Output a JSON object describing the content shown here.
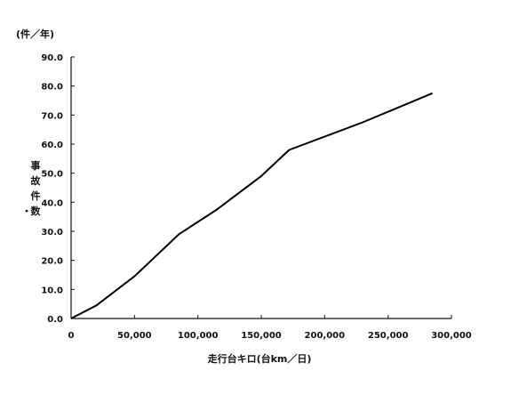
{
  "chart_data": {
    "type": "line",
    "y_unit": "(件／年)",
    "xlabel": "走行台キロ(台km／日)",
    "ylabel_chars": [
      "事",
      "故",
      "件",
      "数"
    ],
    "ylabel_mark": "・",
    "xlim": [
      0,
      300000
    ],
    "ylim": [
      0,
      90
    ],
    "x_ticks": [
      0,
      50000,
      100000,
      150000,
      200000,
      250000,
      300000
    ],
    "x_tick_labels": [
      "0",
      "50,000",
      "100,000",
      "150,000",
      "200,000",
      "250,000",
      "300,000"
    ],
    "y_ticks": [
      0,
      10,
      20,
      30,
      40,
      50,
      60,
      70,
      80,
      90
    ],
    "y_tick_labels": [
      "0.0",
      "10.0",
      "20.0",
      "30.0",
      "40.0",
      "50.0",
      "60.0",
      "70.0",
      "80.0",
      "90.0"
    ],
    "grid": false,
    "series": [
      {
        "x": [
          0,
          20000,
          50000,
          85000,
          115000,
          150000,
          172000,
          230000,
          285000
        ],
        "y": [
          0,
          4.5,
          14.5,
          29,
          37.5,
          49,
          58,
          67.5,
          77.5
        ]
      }
    ]
  },
  "colors": {
    "line": "#000000",
    "axis": "#111111",
    "background": "#ffffff"
  }
}
